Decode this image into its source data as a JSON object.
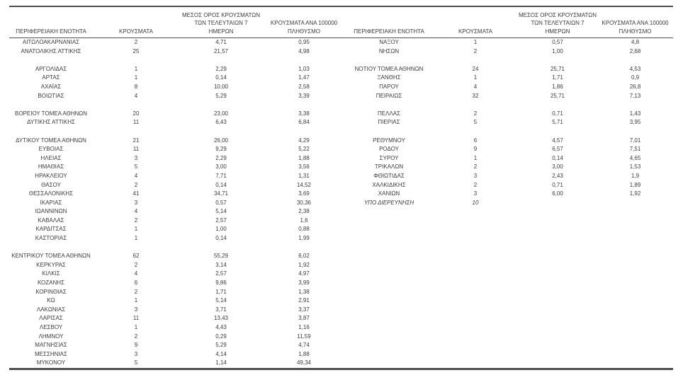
{
  "table": {
    "headers": {
      "region": "ΠΕΡΙΦΕΡΕΙΑΚΗ ΕΝΟΤΗΤΑ",
      "cases": "ΚΡΟΥΣΜΑΤΑ",
      "avg7_line1": "ΜΕΣΟΣ ΟΡΟΣ ΚΡΟΥΣΜΑΤΩΝ",
      "avg7_line2": "ΤΩΝ ΤΕΛΕΥΤΑΙΩΝ 7",
      "avg7_line3": "ΗΜΕΡΩΝ",
      "per100k_line1": "ΚΡΟΥΣΜΑΤΑ ΑΝΑ 100000",
      "per100k_line2": "ΠΛΗΘΥΣΜΟ"
    },
    "rows": [
      {
        "l": [
          "ΑΙΤΩΛΟΑΚΑΡΝΑΝΙΑΣ",
          "2",
          "4,71",
          "0,95"
        ],
        "r": [
          "ΝΑΞΟΥ",
          "1",
          "0,57",
          "4,8"
        ]
      },
      {
        "l": [
          "ΑΝΑΤΟΛΙΚΗΣ ΑΤΤΙΚΗΣ",
          "25",
          "21,57",
          "4,98"
        ],
        "r": [
          "ΝΗΣΩΝ",
          "2",
          "1,00",
          "2,68"
        ]
      },
      {
        "l": [
          "",
          "",
          "",
          ""
        ],
        "r": [
          "",
          "",
          "",
          ""
        ]
      },
      {
        "l": [
          "ΑΡΓΟΛΙΔΑΣ",
          "1",
          "2,29",
          "1,03"
        ],
        "r": [
          "ΝΟΤΙΟΥ ΤΟΜΕΑ ΑΘΗΝΩΝ",
          "24",
          "25,71",
          "4,53"
        ]
      },
      {
        "l": [
          "ΑΡΤΑΣ",
          "1",
          "0,14",
          "1,47"
        ],
        "r": [
          "ΞΑΝΘΗΣ",
          "1",
          "1,71",
          "0,9"
        ]
      },
      {
        "l": [
          "ΑΧΑΪΑΣ",
          "8",
          "10,00",
          "2,58"
        ],
        "r": [
          "ΠΑΡΟΥ",
          "4",
          "1,86",
          "26,8"
        ]
      },
      {
        "l": [
          "ΒΟΙΩΤΙΑΣ",
          "4",
          "5,29",
          "3,39"
        ],
        "r": [
          "ΠΕΙΡΑΙΩΣ",
          "32",
          "25,71",
          "7,13"
        ]
      },
      {
        "l": [
          "",
          "",
          "",
          ""
        ],
        "r": [
          "",
          "",
          "",
          ""
        ]
      },
      {
        "l": [
          "ΒΟΡΕΙΟΥ ΤΟΜΕΑ ΑΘΗΝΩΝ",
          "20",
          "23,00",
          "3,38"
        ],
        "r": [
          "ΠΕΛΛΑΣ",
          "2",
          "0,71",
          "1,43"
        ]
      },
      {
        "l": [
          "ΔΥΤΙΚΗΣ ΑΤΤΙΚΗΣ",
          "11",
          "6,43",
          "6,84"
        ],
        "r": [
          "ΠΙΕΡΙΑΣ",
          "5",
          "5,71",
          "3,95"
        ]
      },
      {
        "l": [
          "",
          "",
          "",
          ""
        ],
        "r": [
          "",
          "",
          "",
          ""
        ]
      },
      {
        "l": [
          "ΔΥΤΙΚΟΥ ΤΟΜΕΑ ΑΘΗΝΩΝ",
          "21",
          "26,00",
          "4,29"
        ],
        "r": [
          "ΡΕΘΥΜΝΟΥ",
          "6",
          "4,57",
          "7,01"
        ]
      },
      {
        "l": [
          "ΕΥΒΟΙΑΣ",
          "11",
          "9,29",
          "5,22"
        ],
        "r": [
          "ΡΟΔΟΥ",
          "9",
          "6,57",
          "7,51"
        ]
      },
      {
        "l": [
          "ΗΛΕΙΑΣ",
          "3",
          "2,29",
          "1,88"
        ],
        "r": [
          "ΣΥΡΟΥ",
          "1",
          "0,14",
          "4,65"
        ]
      },
      {
        "l": [
          "ΗΜΑΘΙΑΣ",
          "5",
          "3,00",
          "3,56"
        ],
        "r": [
          "ΤΡΙΚΑΛΩΝ",
          "2",
          "3,00",
          "1,53"
        ]
      },
      {
        "l": [
          "ΗΡΑΚΛΕΙΟΥ",
          "4",
          "7,71",
          "1,31"
        ],
        "r": [
          "ΦΘΙΩΤΙΔΑΣ",
          "3",
          "2,43",
          "1,9"
        ]
      },
      {
        "l": [
          "ΘΑΣΟΥ",
          "2",
          "0,14",
          "14,52"
        ],
        "r": [
          "ΧΑΛΚΙΔΙΚΗΣ",
          "2",
          "0,71",
          "1,89"
        ]
      },
      {
        "l": [
          "ΘΕΣΣΑΛΟΝΙΚΗΣ",
          "41",
          "34,71",
          "3,69"
        ],
        "r": [
          "ΧΑΝΙΩΝ",
          "3",
          "6,00",
          "1,92"
        ]
      },
      {
        "l": [
          "ΙΚΑΡΙΑΣ",
          "3",
          "0,57",
          "30,36"
        ],
        "r": [
          "ΥΠΟ ΔΙΕΡΕΥΝΗΣΗ",
          "10",
          "",
          ""
        ],
        "r_italic": true
      },
      {
        "l": [
          "ΙΩΑΝΝΙΝΩΝ",
          "4",
          "5,14",
          "2,38"
        ],
        "r": [
          "",
          "",
          "",
          ""
        ]
      },
      {
        "l": [
          "ΚΑΒΑΛΑΣ",
          "2",
          "2,57",
          "1,6"
        ],
        "r": [
          "",
          "",
          "",
          ""
        ]
      },
      {
        "l": [
          "ΚΑΡΔΙΤΣΑΣ",
          "1",
          "1,00",
          "0,88"
        ],
        "r": [
          "",
          "",
          "",
          ""
        ]
      },
      {
        "l": [
          "ΚΑΣΤΟΡΙΑΣ",
          "1",
          "0,14",
          "1,99"
        ],
        "r": [
          "",
          "",
          "",
          ""
        ]
      },
      {
        "l": [
          "",
          "",
          "",
          ""
        ],
        "r": [
          "",
          "",
          "",
          ""
        ]
      },
      {
        "l": [
          "ΚΕΝΤΡΙΚΟΥ ΤΟΜΕΑ ΑΘΗΝΩΝ",
          "62",
          "55,29",
          "6,02"
        ],
        "r": [
          "",
          "",
          "",
          ""
        ]
      },
      {
        "l": [
          "ΚΕΡΚΥΡΑΣ",
          "2",
          "3,14",
          "1,92"
        ],
        "r": [
          "",
          "",
          "",
          ""
        ]
      },
      {
        "l": [
          "ΚΙΛΚΙΣ",
          "4",
          "2,57",
          "4,97"
        ],
        "r": [
          "",
          "",
          "",
          ""
        ]
      },
      {
        "l": [
          "ΚΟΖΑΝΗΣ",
          "6",
          "9,86",
          "3,99"
        ],
        "r": [
          "",
          "",
          "",
          ""
        ]
      },
      {
        "l": [
          "ΚΟΡΙΝΘΙΑΣ",
          "2",
          "1,71",
          "1,38"
        ],
        "r": [
          "",
          "",
          "",
          ""
        ]
      },
      {
        "l": [
          "ΚΩ",
          "1",
          "5,14",
          "2,91"
        ],
        "r": [
          "",
          "",
          "",
          ""
        ]
      },
      {
        "l": [
          "ΛΑΚΩΝΙΑΣ",
          "3",
          "3,71",
          "3,37"
        ],
        "r": [
          "",
          "",
          "",
          ""
        ]
      },
      {
        "l": [
          "ΛΑΡΙΣΑΣ",
          "11",
          "13,43",
          "3,87"
        ],
        "r": [
          "",
          "",
          "",
          ""
        ]
      },
      {
        "l": [
          "ΛΕΣΒΟΥ",
          "1",
          "4,43",
          "1,16"
        ],
        "r": [
          "",
          "",
          "",
          ""
        ]
      },
      {
        "l": [
          "ΛΗΜΝΟΥ",
          "2",
          "0,29",
          "11,59"
        ],
        "r": [
          "",
          "",
          "",
          ""
        ]
      },
      {
        "l": [
          "ΜΑΓΝΗΣΙΑΣ",
          "9",
          "5,29",
          "4,74"
        ],
        "r": [
          "",
          "",
          "",
          ""
        ]
      },
      {
        "l": [
          "ΜΕΣΣΗΝΙΑΣ",
          "3",
          "4,14",
          "1,88"
        ],
        "r": [
          "",
          "",
          "",
          ""
        ]
      },
      {
        "l": [
          "ΜΥΚΟΝΟΥ",
          "5",
          "1,14",
          "49,34"
        ],
        "r": [
          "",
          "",
          "",
          ""
        ]
      }
    ]
  }
}
